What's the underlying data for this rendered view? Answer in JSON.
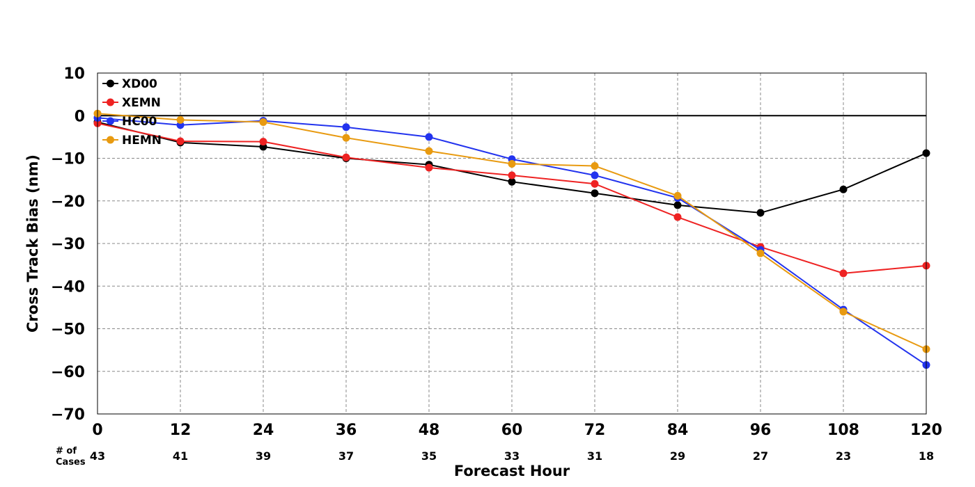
{
  "chart_data": {
    "type": "line",
    "xlabel": "Forecast Hour",
    "ylabel": "Cross Track Bias (nm)",
    "xlim": [
      0,
      120
    ],
    "ylim": [
      -70,
      10
    ],
    "x_ticks": [
      0,
      12,
      24,
      36,
      48,
      60,
      72,
      84,
      96,
      108,
      120
    ],
    "y_ticks": [
      10,
      0,
      -10,
      -20,
      -30,
      -40,
      -50,
      -60,
      -70
    ],
    "x": [
      0,
      12,
      24,
      36,
      48,
      60,
      72,
      84,
      96,
      108,
      120
    ],
    "grid": true,
    "legend_position": "top-left",
    "cases_label": [
      "# of",
      "Cases"
    ],
    "cases": [
      43,
      41,
      39,
      37,
      35,
      33,
      31,
      29,
      27,
      23,
      18
    ],
    "series": [
      {
        "name": "XD00",
        "color": "#000000",
        "values": [
          -1.5,
          -6.3,
          -7.3,
          -10.0,
          -11.5,
          -15.5,
          -18.2,
          -21.0,
          -22.8,
          -17.3,
          -8.8
        ]
      },
      {
        "name": "XEMN",
        "color": "#ee2222",
        "values": [
          -1.8,
          -6.0,
          -6.1,
          -9.8,
          -12.2,
          -14.0,
          -16.0,
          -23.8,
          -30.8,
          -37.0,
          -35.2
        ]
      },
      {
        "name": "HC00",
        "color": "#2233ee",
        "values": [
          -0.5,
          -2.2,
          -1.2,
          -2.7,
          -5.0,
          -10.2,
          -14.0,
          -19.3,
          -31.5,
          -45.5,
          -58.5
        ]
      },
      {
        "name": "HEMN",
        "color": "#e89a10",
        "values": [
          0.5,
          -1.0,
          -1.5,
          -5.2,
          -8.3,
          -11.3,
          -11.8,
          -18.8,
          -32.3,
          -46.0,
          -54.8
        ]
      }
    ]
  }
}
